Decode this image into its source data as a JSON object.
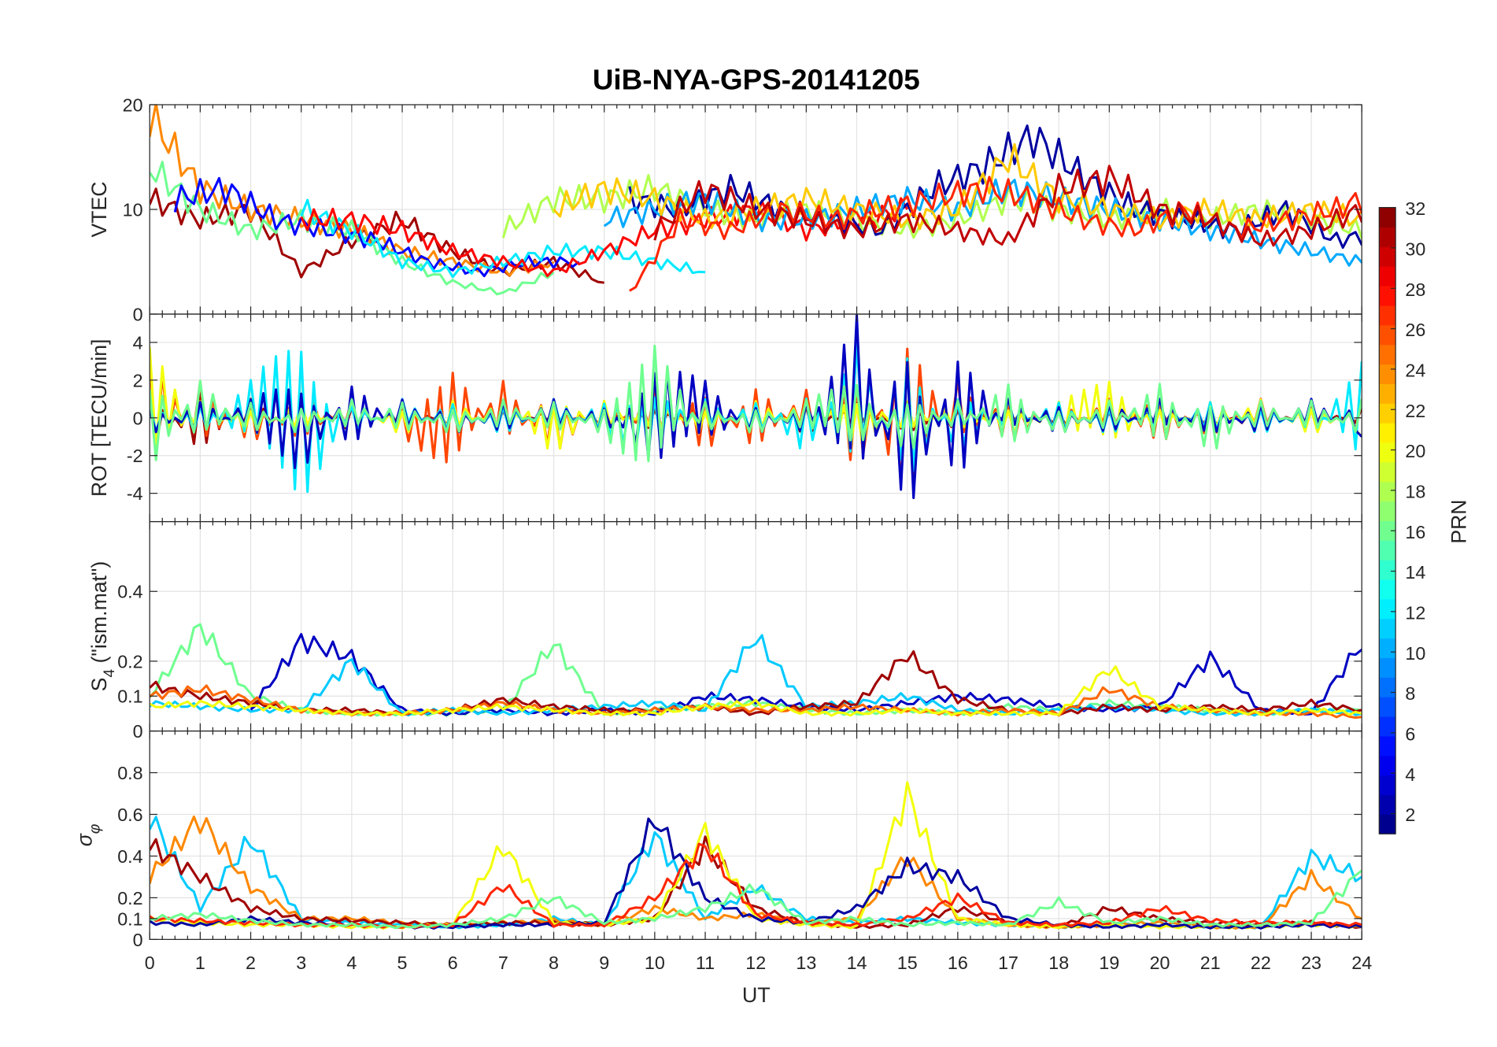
{
  "chart_data": {
    "type": "line",
    "title": "UiB-NYA-GPS-20141205",
    "xlabel": "UT",
    "xlim": [
      0,
      24
    ],
    "xticks": [
      "0",
      "1",
      "2",
      "3",
      "4",
      "5",
      "6",
      "7",
      "8",
      "9",
      "10",
      "11",
      "12",
      "13",
      "14",
      "15",
      "16",
      "17",
      "18",
      "19",
      "20",
      "21",
      "22",
      "23",
      "24"
    ],
    "grid": true,
    "colorbar": {
      "label": "PRN",
      "range": [
        1,
        32
      ],
      "ticks": [
        "2",
        "4",
        "6",
        "8",
        "10",
        "12",
        "14",
        "16",
        "18",
        "20",
        "22",
        "24",
        "26",
        "28",
        "30",
        "32"
      ],
      "colormap": "jet"
    },
    "subplots": [
      {
        "id": "vtec",
        "ylabel": "VTEC",
        "ylim": [
          0,
          20
        ],
        "yticks": [
          "0",
          "10",
          "20"
        ],
        "yvals": [
          0,
          10,
          20
        ],
        "series": [
          {
            "prn": 31,
            "start": 0,
            "values": [
              11,
              9,
              10,
              4,
              7,
              9,
              6,
              4,
              5,
              3
            ]
          },
          {
            "prn": 24,
            "start": 0,
            "values": [
              19,
              12,
              10,
              9,
              8,
              6,
              5,
              4,
              5
            ]
          },
          {
            "prn": 16,
            "start": 0,
            "values": [
              14,
              10,
              8,
              9,
              8,
              5,
              3,
              2,
              4
            ]
          },
          {
            "prn": 5,
            "start": 0.5,
            "values": [
              11,
              12,
              9,
              8,
              7,
              5,
              4,
              5,
              5
            ]
          },
          {
            "prn": 12,
            "start": 3,
            "values": [
              10,
              8,
              5,
              4,
              5,
              6,
              6,
              5,
              4
            ]
          },
          {
            "prn": 28,
            "start": 3,
            "values": [
              9,
              9,
              8,
              6,
              5,
              4,
              6,
              8,
              9,
              10,
              8,
              9,
              10
            ]
          },
          {
            "prn": 18,
            "start": 7,
            "values": [
              8,
              11,
              11,
              12,
              10,
              9,
              10,
              9,
              8,
              9,
              11,
              10,
              9,
              10,
              9,
              10,
              9,
              8,
              14,
              12,
              10,
              8,
              6,
              5
            ]
          },
          {
            "prn": 2,
            "start": 9.5,
            "values": [
              11,
              10,
              12,
              10,
              9,
              8,
              12,
              14,
              17,
              13,
              10,
              9,
              8,
              10,
              7,
              8,
              9,
              10,
              8,
              6,
              4,
              7,
              7
            ]
          },
          {
            "prn": 10,
            "start": 9,
            "values": [
              9,
              10,
              11,
              9,
              9,
              10,
              11,
              10,
              12,
              11,
              10,
              9,
              8,
              7,
              6,
              5,
              6,
              8,
              10,
              9,
              7,
              6,
              5,
              8
            ]
          },
          {
            "prn": 22,
            "start": 8,
            "values": [
              10,
              12,
              11,
              9,
              10,
              11,
              10,
              9,
              10,
              15,
              11,
              10,
              9,
              10,
              9,
              10,
              9,
              8,
              10,
              9,
              6,
              3,
              4,
              5
            ]
          },
          {
            "prn": 27,
            "start": 9.5,
            "values": [
              2,
              9,
              8,
              10,
              9,
              10,
              11,
              12,
              11,
              9,
              8,
              10,
              8,
              9,
              10,
              12,
              15,
              13,
              9,
              6,
              4,
              3
            ]
          },
          {
            "prn": 30,
            "start": 10,
            "values": [
              8,
              12,
              10,
              9,
              8,
              9,
              8,
              7,
              12,
              13,
              10,
              9,
              7,
              8,
              10,
              9,
              11,
              10,
              8,
              3,
              6
            ]
          }
        ]
      },
      {
        "id": "rot",
        "ylabel": "ROT [TECU/min]",
        "ylim": [
          -5.5,
          5.5
        ],
        "yticks": [
          "-4",
          "-2",
          "0",
          "2",
          "4"
        ],
        "yvals": [
          -4,
          -2,
          0,
          2,
          4
        ],
        "series": [
          {
            "prn": 31,
            "start": 0,
            "values": [
              2,
              -2,
              1,
              -1,
              0.8,
              -0.8,
              0.6,
              -0.6,
              0.5,
              -0.5,
              0.7,
              -0.9,
              1,
              -1,
              0.8,
              -0.9,
              0.7,
              -0.6,
              0.5,
              -0.5,
              0.6,
              -0.6,
              0.8,
              -0.7,
              0.5
            ]
          },
          {
            "prn": 26,
            "start": 0,
            "values": [
              -4,
              2,
              -1.5,
              1.5,
              -1,
              1,
              3,
              -2,
              2,
              -1,
              1.5,
              -2,
              2,
              -1.5,
              3,
              -5,
              2,
              -1.5,
              1,
              -1,
              1.5,
              -1.2,
              1,
              -1,
              1
            ]
          },
          {
            "prn": 20,
            "start": 0,
            "values": [
              4,
              -1,
              1,
              -1,
              1,
              -1,
              1,
              -1,
              2,
              -1,
              1,
              -1,
              1,
              -1,
              2,
              -1,
              1,
              -1,
              1,
              2,
              -1,
              1,
              -1,
              1,
              -1
            ]
          },
          {
            "prn": 12,
            "start": 0,
            "values": [
              1,
              -1,
              2,
              5,
              -1,
              1,
              -1,
              1,
              -1,
              1,
              2,
              -1,
              1,
              -2,
              4,
              -4,
              2,
              -1,
              1,
              -1,
              1,
              -1,
              1,
              -1,
              3
            ]
          },
          {
            "prn": 3,
            "start": 0,
            "values": [
              -1,
              1,
              -1,
              -3,
              2,
              -1,
              1,
              -1,
              1,
              -1,
              3,
              2,
              -1,
              1,
              -5.5,
              5.5,
              -4,
              1,
              -1,
              1,
              -1,
              1,
              -1,
              1,
              -1
            ]
          },
          {
            "prn": 16,
            "start": 0,
            "values": [
              3,
              -2,
              1,
              -1,
              1,
              -1,
              1,
              -1,
              1,
              -1,
              -4,
              1,
              -1,
              1,
              2,
              -2,
              1,
              -2,
              1,
              -1,
              2,
              -2,
              1,
              -1,
              1
            ]
          }
        ]
      },
      {
        "id": "s4",
        "ylabel": "S4 (\"ism.mat\")",
        "ylabel_main": "S",
        "ylabel_sub": "4",
        "ylabel_rest": " (\"ism.mat\")",
        "ylim": [
          0,
          0.6
        ],
        "yticks": [
          "0",
          "0.1",
          "0.2",
          "0.4"
        ],
        "yvals": [
          0,
          0.1,
          0.2,
          0.4
        ],
        "series": [
          {
            "prn": 16,
            "start": 0,
            "values": [
              0.1,
              0.3,
              0.1,
              0.06,
              0.05,
              0.05,
              0.05,
              0.06,
              0.25,
              0.05,
              0.06,
              0.07,
              0.08,
              0.06,
              0.05,
              0.06,
              0.05,
              0.07,
              0.06,
              0.08,
              0.07,
              0.06,
              0.05,
              0.06,
              0.06
            ]
          },
          {
            "prn": 3,
            "start": 2,
            "values": [
              0.06,
              0.26,
              0.21,
              0.06,
              0.05,
              0.06,
              0.05,
              0.06,
              0.05,
              0.1,
              0.09,
              0.07,
              0.06,
              0.08,
              0.1,
              0.09,
              0.07,
              0.06,
              0.07,
              0.21,
              0.06,
              0.05,
              0.25,
              0.09
            ]
          },
          {
            "prn": 11,
            "start": 0,
            "values": [
              0.08,
              0.07,
              0.06,
              0.06,
              0.2,
              0.05,
              0.06,
              0.05,
              0.06,
              0.07,
              0.08,
              0.06,
              0.27,
              0.07,
              0.08,
              0.1,
              0.06,
              0.05,
              0.06,
              0.07,
              0.06,
              0.05,
              0.05,
              0.06,
              0.05
            ]
          },
          {
            "prn": 31,
            "start": 0,
            "values": [
              0.13,
              0.1,
              0.08,
              0.06,
              0.06,
              0.05,
              0.06,
              0.09,
              0.07,
              0.06,
              0.06,
              0.07,
              0.05,
              0.07,
              0.08,
              0.22,
              0.09,
              0.06,
              0.05,
              0.07,
              0.06,
              0.07,
              0.06,
              0.08,
              0.06
            ]
          },
          {
            "prn": 25,
            "start": 0,
            "values": [
              0.1,
              0.12,
              0.09,
              0.06,
              0.05,
              0.05,
              0.06,
              0.08,
              0.06,
              0.05,
              0.06,
              0.07,
              0.06,
              0.06,
              0.07,
              0.06,
              0.05,
              0.06,
              0.05,
              0.12,
              0.07,
              0.06,
              0.05,
              0.05,
              0.04
            ]
          },
          {
            "prn": 20,
            "start": 0,
            "values": [
              0.07,
              0.08,
              0.07,
              0.06,
              0.05,
              0.05,
              0.06,
              0.07,
              0.06,
              0.05,
              0.05,
              0.07,
              0.08,
              0.05,
              0.05,
              0.06,
              0.05,
              0.05,
              0.05,
              0.18,
              0.07,
              0.06,
              0.05,
              0.06,
              0.05
            ]
          }
        ]
      },
      {
        "id": "sigma",
        "ylabel": "σφ",
        "ylabel_main": "σ",
        "ylabel_sub": "φ",
        "ylim": [
          0,
          1
        ],
        "yticks": [
          "0",
          "0.1",
          "0.2",
          "0.4",
          "0.6",
          "0.8"
        ],
        "yvals": [
          0,
          0.1,
          0.2,
          0.4,
          0.6,
          0.8
        ],
        "series": [
          {
            "prn": 11,
            "start": 0,
            "values": [
              0.6,
              0.15,
              0.48,
              0.1,
              0.08,
              0.07,
              0.06,
              0.07,
              0.1,
              0.07,
              0.5,
              0.1,
              0.25,
              0.1,
              0.08,
              0.1,
              0.08,
              0.07,
              0.06,
              0.07,
              0.08,
              0.06,
              0.06,
              0.4,
              0.3
            ]
          },
          {
            "prn": 24,
            "start": 0,
            "values": [
              0.3,
              0.58,
              0.25,
              0.1,
              0.1,
              0.08,
              0.07,
              0.08,
              0.09,
              0.07,
              0.15,
              0.1,
              0.12,
              0.08,
              0.1,
              0.4,
              0.1,
              0.07,
              0.06,
              0.07,
              0.08,
              0.06,
              0.06,
              0.3,
              0.1
            ]
          },
          {
            "prn": 31,
            "start": 0,
            "values": [
              0.45,
              0.3,
              0.15,
              0.1,
              0.09,
              0.08,
              0.07,
              0.08,
              0.08,
              0.07,
              0.1,
              0.45,
              0.15,
              0.08,
              0.06,
              0.07,
              0.15,
              0.08,
              0.06,
              0.15,
              0.1,
              0.08,
              0.07,
              0.08,
              0.06
            ]
          },
          {
            "prn": 20,
            "start": 0,
            "values": [
              0.1,
              0.08,
              0.07,
              0.07,
              0.06,
              0.06,
              0.07,
              0.45,
              0.08,
              0.07,
              0.1,
              0.52,
              0.1,
              0.07,
              0.06,
              0.7,
              0.1,
              0.07,
              0.06,
              0.07,
              0.06,
              0.06,
              0.06,
              0.07,
              0.06
            ]
          },
          {
            "prn": 2,
            "start": 0,
            "values": [
              0.08,
              0.07,
              0.1,
              0.08,
              0.07,
              0.06,
              0.06,
              0.07,
              0.07,
              0.08,
              0.58,
              0.2,
              0.1,
              0.08,
              0.15,
              0.35,
              0.3,
              0.1,
              0.07,
              0.06,
              0.07,
              0.06,
              0.06,
              0.07,
              0.06
            ]
          },
          {
            "prn": 27,
            "start": 0,
            "values": [
              0.1,
              0.09,
              0.08,
              0.07,
              0.07,
              0.06,
              0.07,
              0.26,
              0.07,
              0.07,
              0.2,
              0.45,
              0.12,
              0.08,
              0.07,
              0.1,
              0.2,
              0.08,
              0.07,
              0.08,
              0.15,
              0.09,
              0.08,
              0.08,
              0.07
            ]
          },
          {
            "prn": 16,
            "start": 0,
            "values": [
              0.1,
              0.12,
              0.09,
              0.07,
              0.07,
              0.06,
              0.07,
              0.1,
              0.2,
              0.08,
              0.1,
              0.15,
              0.25,
              0.08,
              0.1,
              0.07,
              0.08,
              0.07,
              0.18,
              0.08,
              0.1,
              0.07,
              0.07,
              0.08,
              0.33
            ]
          }
        ]
      }
    ]
  }
}
